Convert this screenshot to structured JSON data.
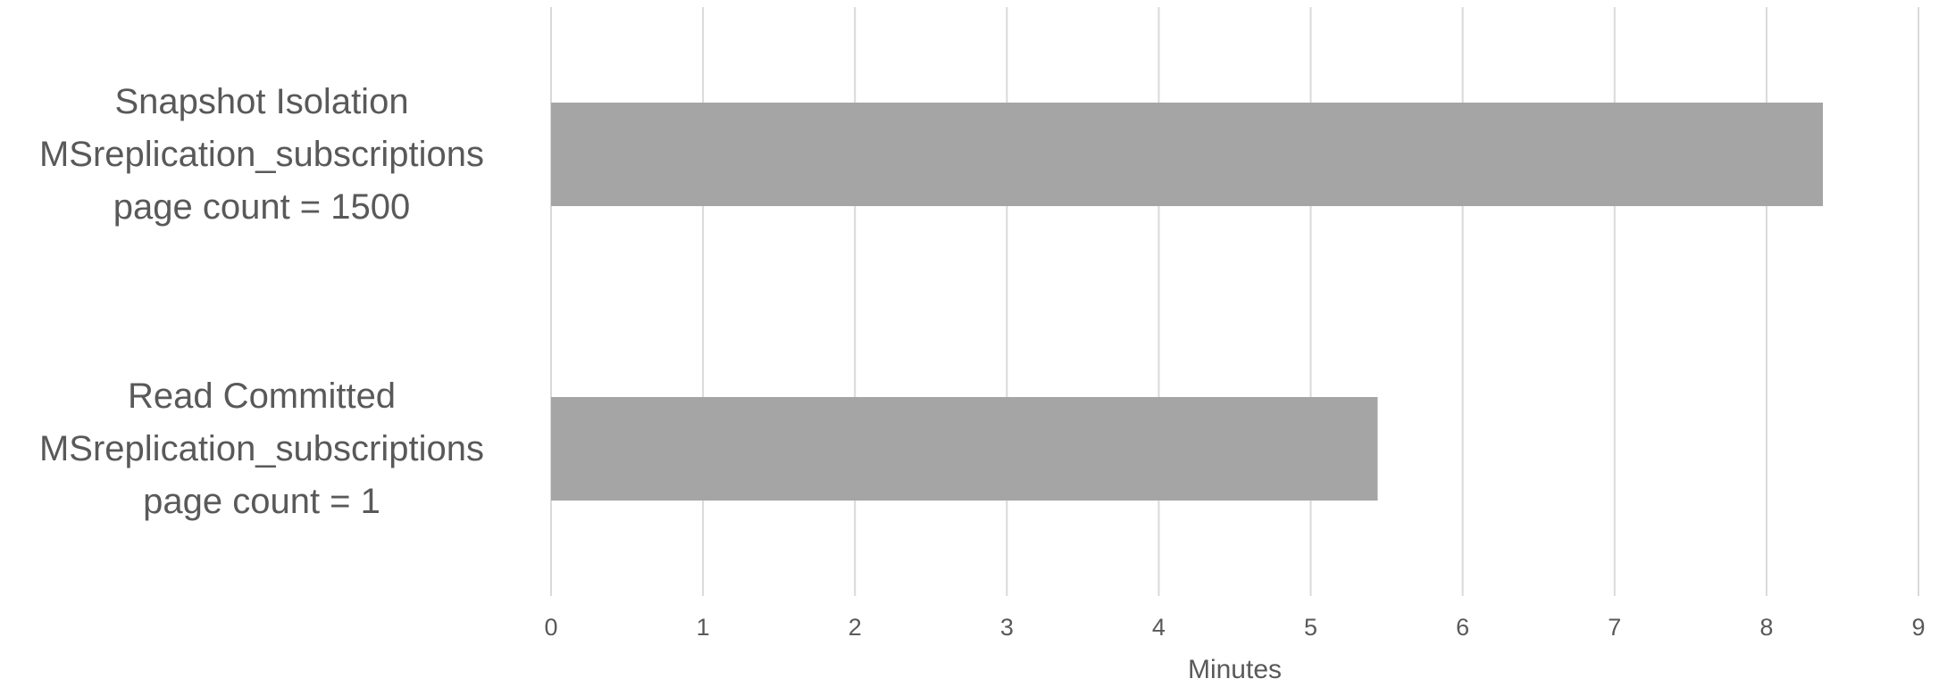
{
  "chart_data": {
    "type": "bar",
    "orientation": "horizontal",
    "categories": [
      [
        "Snapshot Isolation",
        "MSreplication_subscriptions",
        "page count = 1500"
      ],
      [
        "Read Committed",
        "MSreplication_subscriptions",
        "page count  = 1"
      ]
    ],
    "values": [
      8.37,
      5.44
    ],
    "title": "",
    "xlabel": "Minutes",
    "ylabel": "",
    "xlim": [
      0,
      9
    ],
    "xticks": [
      "0",
      "1",
      "2",
      "3",
      "4",
      "5",
      "6",
      "7",
      "8",
      "9"
    ],
    "grid": true,
    "legend": "none",
    "colors": {
      "bar": "#a5a5a5",
      "grid": "#d9d9d9",
      "text": "#595959"
    }
  }
}
